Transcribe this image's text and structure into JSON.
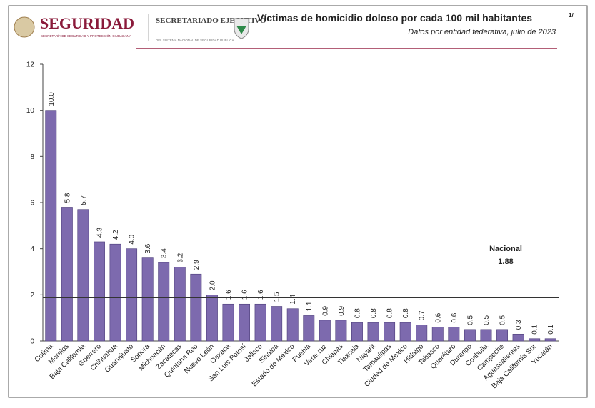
{
  "header": {
    "brand": "SEGURIDAD",
    "brand_sub": "SECRETARÍA DE SEGURIDAD Y PROTECCIÓN CIUDADANA",
    "agency": "SECRETARIADO EJECUTIVO",
    "agency_sub": "DEL SISTEMA NACIONAL DE SEGURIDAD PÚBLICA"
  },
  "chart_data": {
    "type": "bar",
    "title": "Víctimas de homicidio doloso por cada 100 mil habitantes",
    "title_note": "1/",
    "subtitle": "Datos por entidad federativa, julio de 2023",
    "categories": [
      "Colima",
      "Morelos",
      "Baja California",
      "Guerrero",
      "Chihuahua",
      "Guanajuato",
      "Sonora",
      "Michoacán",
      "Zacatecas",
      "Quintana Roo",
      "Nuevo León",
      "Oaxaca",
      "San Luis Potosí",
      "Jalisco",
      "Sinaloa",
      "Estado de México",
      "Puebla",
      "Veracruz",
      "Chiapas",
      "Tlaxcala",
      "Nayarit",
      "Tamaulipas",
      "Ciudad de México",
      "Hidalgo",
      "Tabasco",
      "Querétaro",
      "Durango",
      "Coahuila",
      "Campeche",
      "Aguascalientes",
      "Baja California Sur",
      "Yucatán"
    ],
    "values": [
      10.0,
      5.8,
      5.7,
      4.3,
      4.2,
      4.0,
      3.6,
      3.4,
      3.2,
      2.9,
      2.0,
      1.6,
      1.6,
      1.6,
      1.5,
      1.4,
      1.1,
      0.9,
      0.9,
      0.8,
      0.8,
      0.8,
      0.8,
      0.7,
      0.6,
      0.6,
      0.5,
      0.5,
      0.5,
      0.3,
      0.1,
      0.1
    ],
    "value_labels": [
      "10.0",
      "5.8",
      "5.7",
      "4.3",
      "4.2",
      "4.0",
      "3.6",
      "3.4",
      "3.2",
      "2.9",
      "2.0",
      "1.6",
      "1.6",
      "1.6",
      "1.5",
      "1.4",
      "1.1",
      "0.9",
      "0.9",
      "0.8",
      "0.8",
      "0.8",
      "0.8",
      "0.7",
      "0.6",
      "0.6",
      "0.5",
      "0.5",
      "0.5",
      "0.3",
      "0.1",
      "0.1"
    ],
    "color": "#7d6aae",
    "ylim": [
      0,
      12
    ],
    "yticks": [
      0,
      2,
      4,
      6,
      8,
      10,
      12
    ],
    "reference": {
      "label": "Nacional",
      "value": 1.88
    }
  }
}
